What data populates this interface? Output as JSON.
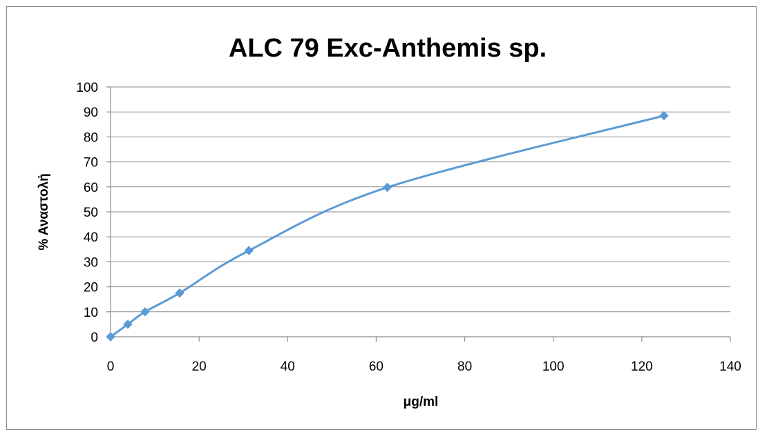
{
  "chart_data": {
    "type": "scatter",
    "title": "ALC 79 Exc-Anthemis sp.",
    "xlabel": "μg/ml",
    "ylabel": "% Αναστολή",
    "xlim": [
      0,
      140
    ],
    "ylim": [
      0,
      100
    ],
    "x_ticks": [
      "0",
      "20",
      "40",
      "60",
      "80",
      "100",
      "120",
      "140"
    ],
    "y_ticks": [
      "0",
      "10",
      "20",
      "30",
      "40",
      "50",
      "60",
      "70",
      "80",
      "90",
      "100"
    ],
    "grid": true,
    "legend": "none",
    "line_style": "smoothed",
    "marker": "diamond",
    "color": "#5b9bd5",
    "series": [
      {
        "x": [
          0,
          3.9,
          7.8,
          15.6,
          31.25,
          62.5,
          125
        ],
        "y": [
          0,
          5,
          10,
          17.5,
          34.5,
          59.8,
          88.5
        ]
      }
    ]
  }
}
